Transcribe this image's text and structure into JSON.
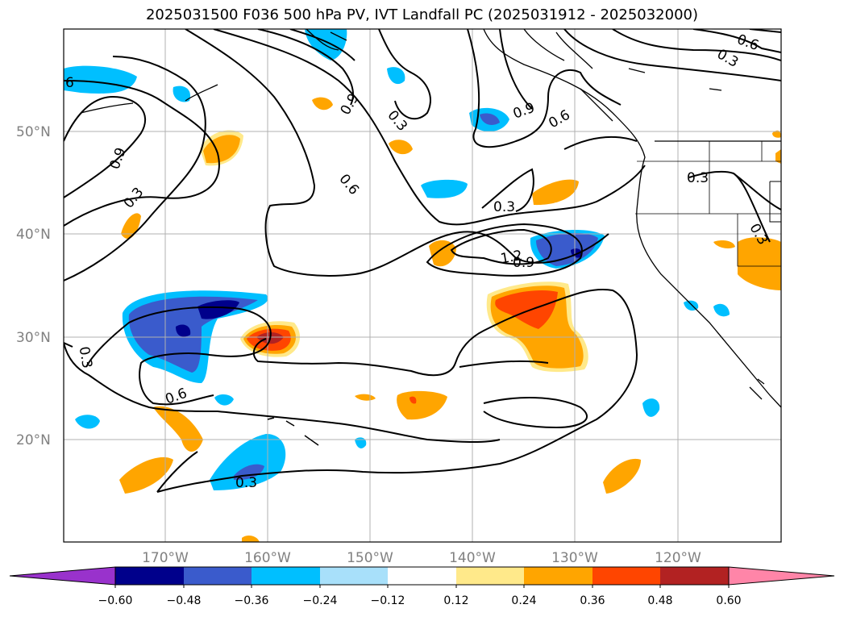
{
  "title": "2025031500 F036 500 hPa PV, IVT Landfall PC (2025031912 - 2025032000)",
  "map": {
    "lon_range": [
      -180,
      -110
    ],
    "lat_range": [
      10,
      60
    ],
    "lat_ticks": [
      "20°N",
      "30°N",
      "40°N",
      "50°N"
    ],
    "lon_ticks": [
      "170°W",
      "160°W",
      "150°W",
      "140°W",
      "130°W",
      "120°W"
    ],
    "gridlines": true
  },
  "contour_labels": [
    {
      "id": "c-lbl-1",
      "text": "6"
    },
    {
      "id": "c-lbl-2",
      "text": "0.9"
    },
    {
      "id": "c-lbl-3",
      "text": "0.3"
    },
    {
      "id": "c-lbl-4",
      "text": "0.9"
    },
    {
      "id": "c-lbl-5",
      "text": "0.3"
    },
    {
      "id": "c-lbl-6",
      "text": "0.6"
    },
    {
      "id": "c-lbl-7",
      "text": "0.9"
    },
    {
      "id": "c-lbl-8",
      "text": "0.6"
    },
    {
      "id": "c-lbl-9",
      "text": "0.3"
    },
    {
      "id": "c-lbl-10",
      "text": "0.6"
    },
    {
      "id": "c-lbl-11",
      "text": "0.3"
    },
    {
      "id": "c-lbl-12",
      "text": "1.2"
    },
    {
      "id": "c-lbl-13",
      "text": "0.9"
    },
    {
      "id": "c-lbl-14",
      "text": "0.3"
    },
    {
      "id": "c-lbl-15",
      "text": "0.3"
    },
    {
      "id": "c-lbl-16",
      "text": "0.6"
    },
    {
      "id": "c-lbl-17",
      "text": "0.3"
    },
    {
      "id": "c-lbl-18",
      "text": "0.3"
    }
  ],
  "colorbar": {
    "tick_labels": [
      "−0.60",
      "−0.48",
      "−0.36",
      "−0.24",
      "−0.12",
      "0.12",
      "0.24",
      "0.36",
      "0.48",
      "0.60"
    ],
    "colors": [
      "#9932cc",
      "#00008b",
      "#3a5bcc",
      "#00bfff",
      "#a8e0fa",
      "#ffffff",
      "#ffe98a",
      "#ffa500",
      "#ff4500",
      "#b22222",
      "#ff85a8"
    ]
  },
  "legend_colors": {
    "contour": "#000000",
    "grid": "#b0b0b0",
    "coast": "#000000"
  }
}
